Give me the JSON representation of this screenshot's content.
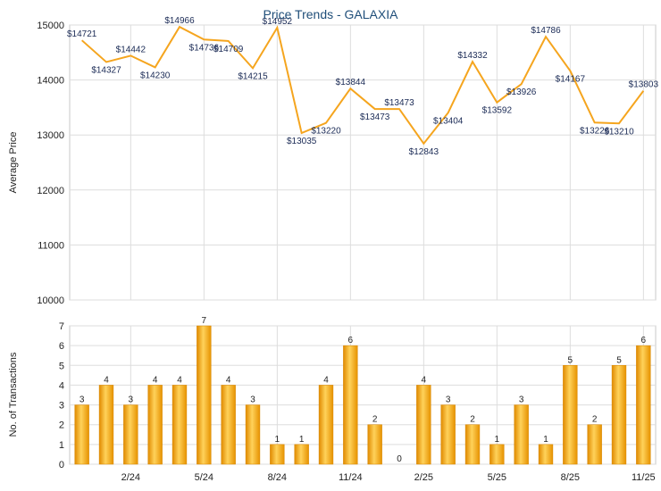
{
  "chart_data": [
    {
      "type": "line",
      "title": "Price Trends - GALAXIA",
      "ylabel": "Average Price",
      "ylim": [
        10000,
        15000
      ],
      "yticks": [
        10000,
        11000,
        12000,
        13000,
        14000,
        15000
      ],
      "grid": true,
      "line_color": "#f5a51e",
      "points": [
        {
          "v": 14721,
          "label": "$14721"
        },
        {
          "v": 14327,
          "label": "$14327"
        },
        {
          "v": 14442,
          "label": "$14442"
        },
        {
          "v": 14230,
          "label": "$14230"
        },
        {
          "v": 14966,
          "label": "$14966"
        },
        {
          "v": 14736,
          "label": "$14736"
        },
        {
          "v": 14709,
          "label": "$14709"
        },
        {
          "v": 14215,
          "label": "$14215"
        },
        {
          "v": 14952,
          "label": "$14952"
        },
        {
          "v": 13035,
          "label": "$13035"
        },
        {
          "v": 13220,
          "label": "$13220"
        },
        {
          "v": 13844,
          "label": "$13844"
        },
        {
          "v": 13473,
          "label": "$13473"
        },
        {
          "v": 13473,
          "label": "$13473"
        },
        {
          "v": 12843,
          "label": "$12843"
        },
        {
          "v": 13404,
          "label": "$13404"
        },
        {
          "v": 14332,
          "label": "$14332"
        },
        {
          "v": 13592,
          "label": "$13592"
        },
        {
          "v": 13926,
          "label": "$13926"
        },
        {
          "v": 14786,
          "label": "$14786"
        },
        {
          "v": 14167,
          "label": "$14167"
        },
        {
          "v": 13226,
          "label": "$13226"
        },
        {
          "v": 13210,
          "label": "$13210"
        },
        {
          "v": 13803,
          "label": "$13803"
        }
      ]
    },
    {
      "type": "bar",
      "ylabel": "No. of Transactions",
      "ylim": [
        0,
        7
      ],
      "yticks": [
        0,
        1,
        2,
        3,
        4,
        5,
        6,
        7
      ],
      "grid": true,
      "bar_color": "#f5a51e",
      "xtick_labels": [
        {
          "index": 2,
          "label": "2/24"
        },
        {
          "index": 5,
          "label": "5/24"
        },
        {
          "index": 8,
          "label": "8/24"
        },
        {
          "index": 11,
          "label": "11/24"
        },
        {
          "index": 14,
          "label": "2/25"
        },
        {
          "index": 17,
          "label": "5/25"
        },
        {
          "index": 20,
          "label": "8/25"
        },
        {
          "index": 23,
          "label": "11/25"
        }
      ],
      "values": [
        3,
        4,
        3,
        4,
        4,
        7,
        4,
        3,
        1,
        1,
        4,
        6,
        2,
        0,
        4,
        3,
        2,
        1,
        3,
        1,
        5,
        2,
        5,
        6
      ]
    }
  ]
}
